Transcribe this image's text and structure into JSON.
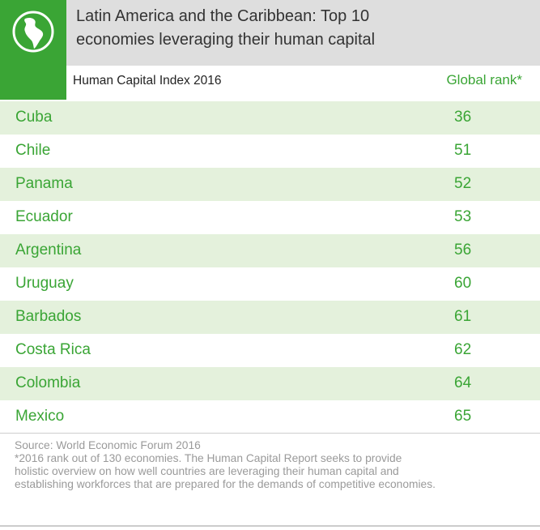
{
  "header": {
    "title_line1": "Latin America and the Caribbean: Top 10",
    "title_line2": "economies leveraging their human capital",
    "subtitle": "Human Capital Index 2016",
    "rank_column_label": "Global rank*",
    "logo_icon": "globe-americas-icon",
    "accent_color": "#3aa535",
    "row_tint": "#e4f1dc"
  },
  "chart_data": {
    "type": "table",
    "title": "Latin America and the Caribbean: Top 10 economies leveraging their human capital",
    "subtitle": "Human Capital Index 2016",
    "columns": [
      "",
      "Global rank*"
    ],
    "rows": [
      {
        "country": "Cuba",
        "rank": 36
      },
      {
        "country": "Chile",
        "rank": 51
      },
      {
        "country": "Panama",
        "rank": 52
      },
      {
        "country": "Ecuador",
        "rank": 53
      },
      {
        "country": "Argentina",
        "rank": 56
      },
      {
        "country": "Uruguay",
        "rank": 60
      },
      {
        "country": "Barbados",
        "rank": 61
      },
      {
        "country": "Costa Rica",
        "rank": 62
      },
      {
        "country": "Colombia",
        "rank": 64
      },
      {
        "country": "Mexico",
        "rank": 65
      }
    ]
  },
  "footer": {
    "source": "Source: World Economic Forum 2016",
    "note_line1": "*2016 rank out of 130 economies. The Human Capital Report seeks to provide",
    "note_line2": "holistic overview on how well countries are leveraging their human capital and",
    "note_line3": "establishing workforces that are prepared for the demands of competitive economies."
  }
}
